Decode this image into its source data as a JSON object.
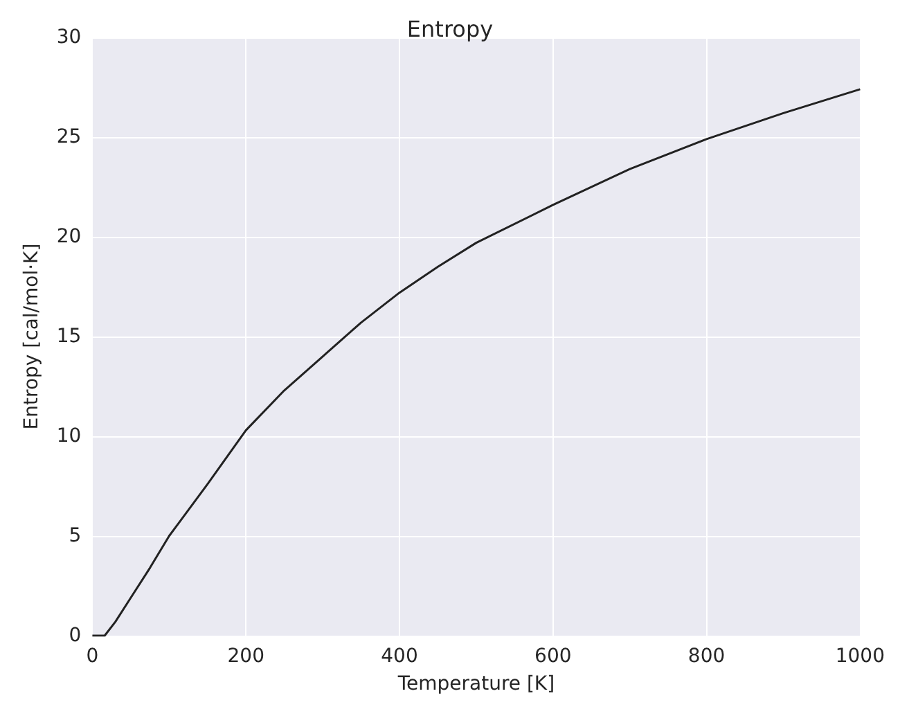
{
  "chart_data": {
    "type": "line",
    "title": "Entropy",
    "xlabel": "Temperature [K]",
    "ylabel": "Entropy [cal/mol·K]",
    "x": [
      0,
      10,
      16,
      30,
      50,
      75,
      100,
      150,
      200,
      250,
      300,
      350,
      400,
      450,
      500,
      600,
      700,
      800,
      900,
      1000
    ],
    "series": [
      {
        "color": "#222222",
        "values": [
          0,
          0,
          0,
          0.7,
          1.9,
          3.4,
          5.0,
          7.6,
          10.3,
          12.3,
          14.0,
          15.7,
          17.2,
          18.5,
          19.7,
          21.6,
          23.4,
          24.9,
          26.2,
          27.4
        ]
      }
    ],
    "xlim": [
      0,
      1000
    ],
    "xticks": [
      0,
      200,
      400,
      600,
      800,
      1000
    ],
    "ylim": [
      0,
      30
    ],
    "yticks": [
      0,
      5,
      10,
      15,
      20,
      25,
      30
    ],
    "grid": true,
    "marker": "none",
    "line_style": "solid"
  }
}
